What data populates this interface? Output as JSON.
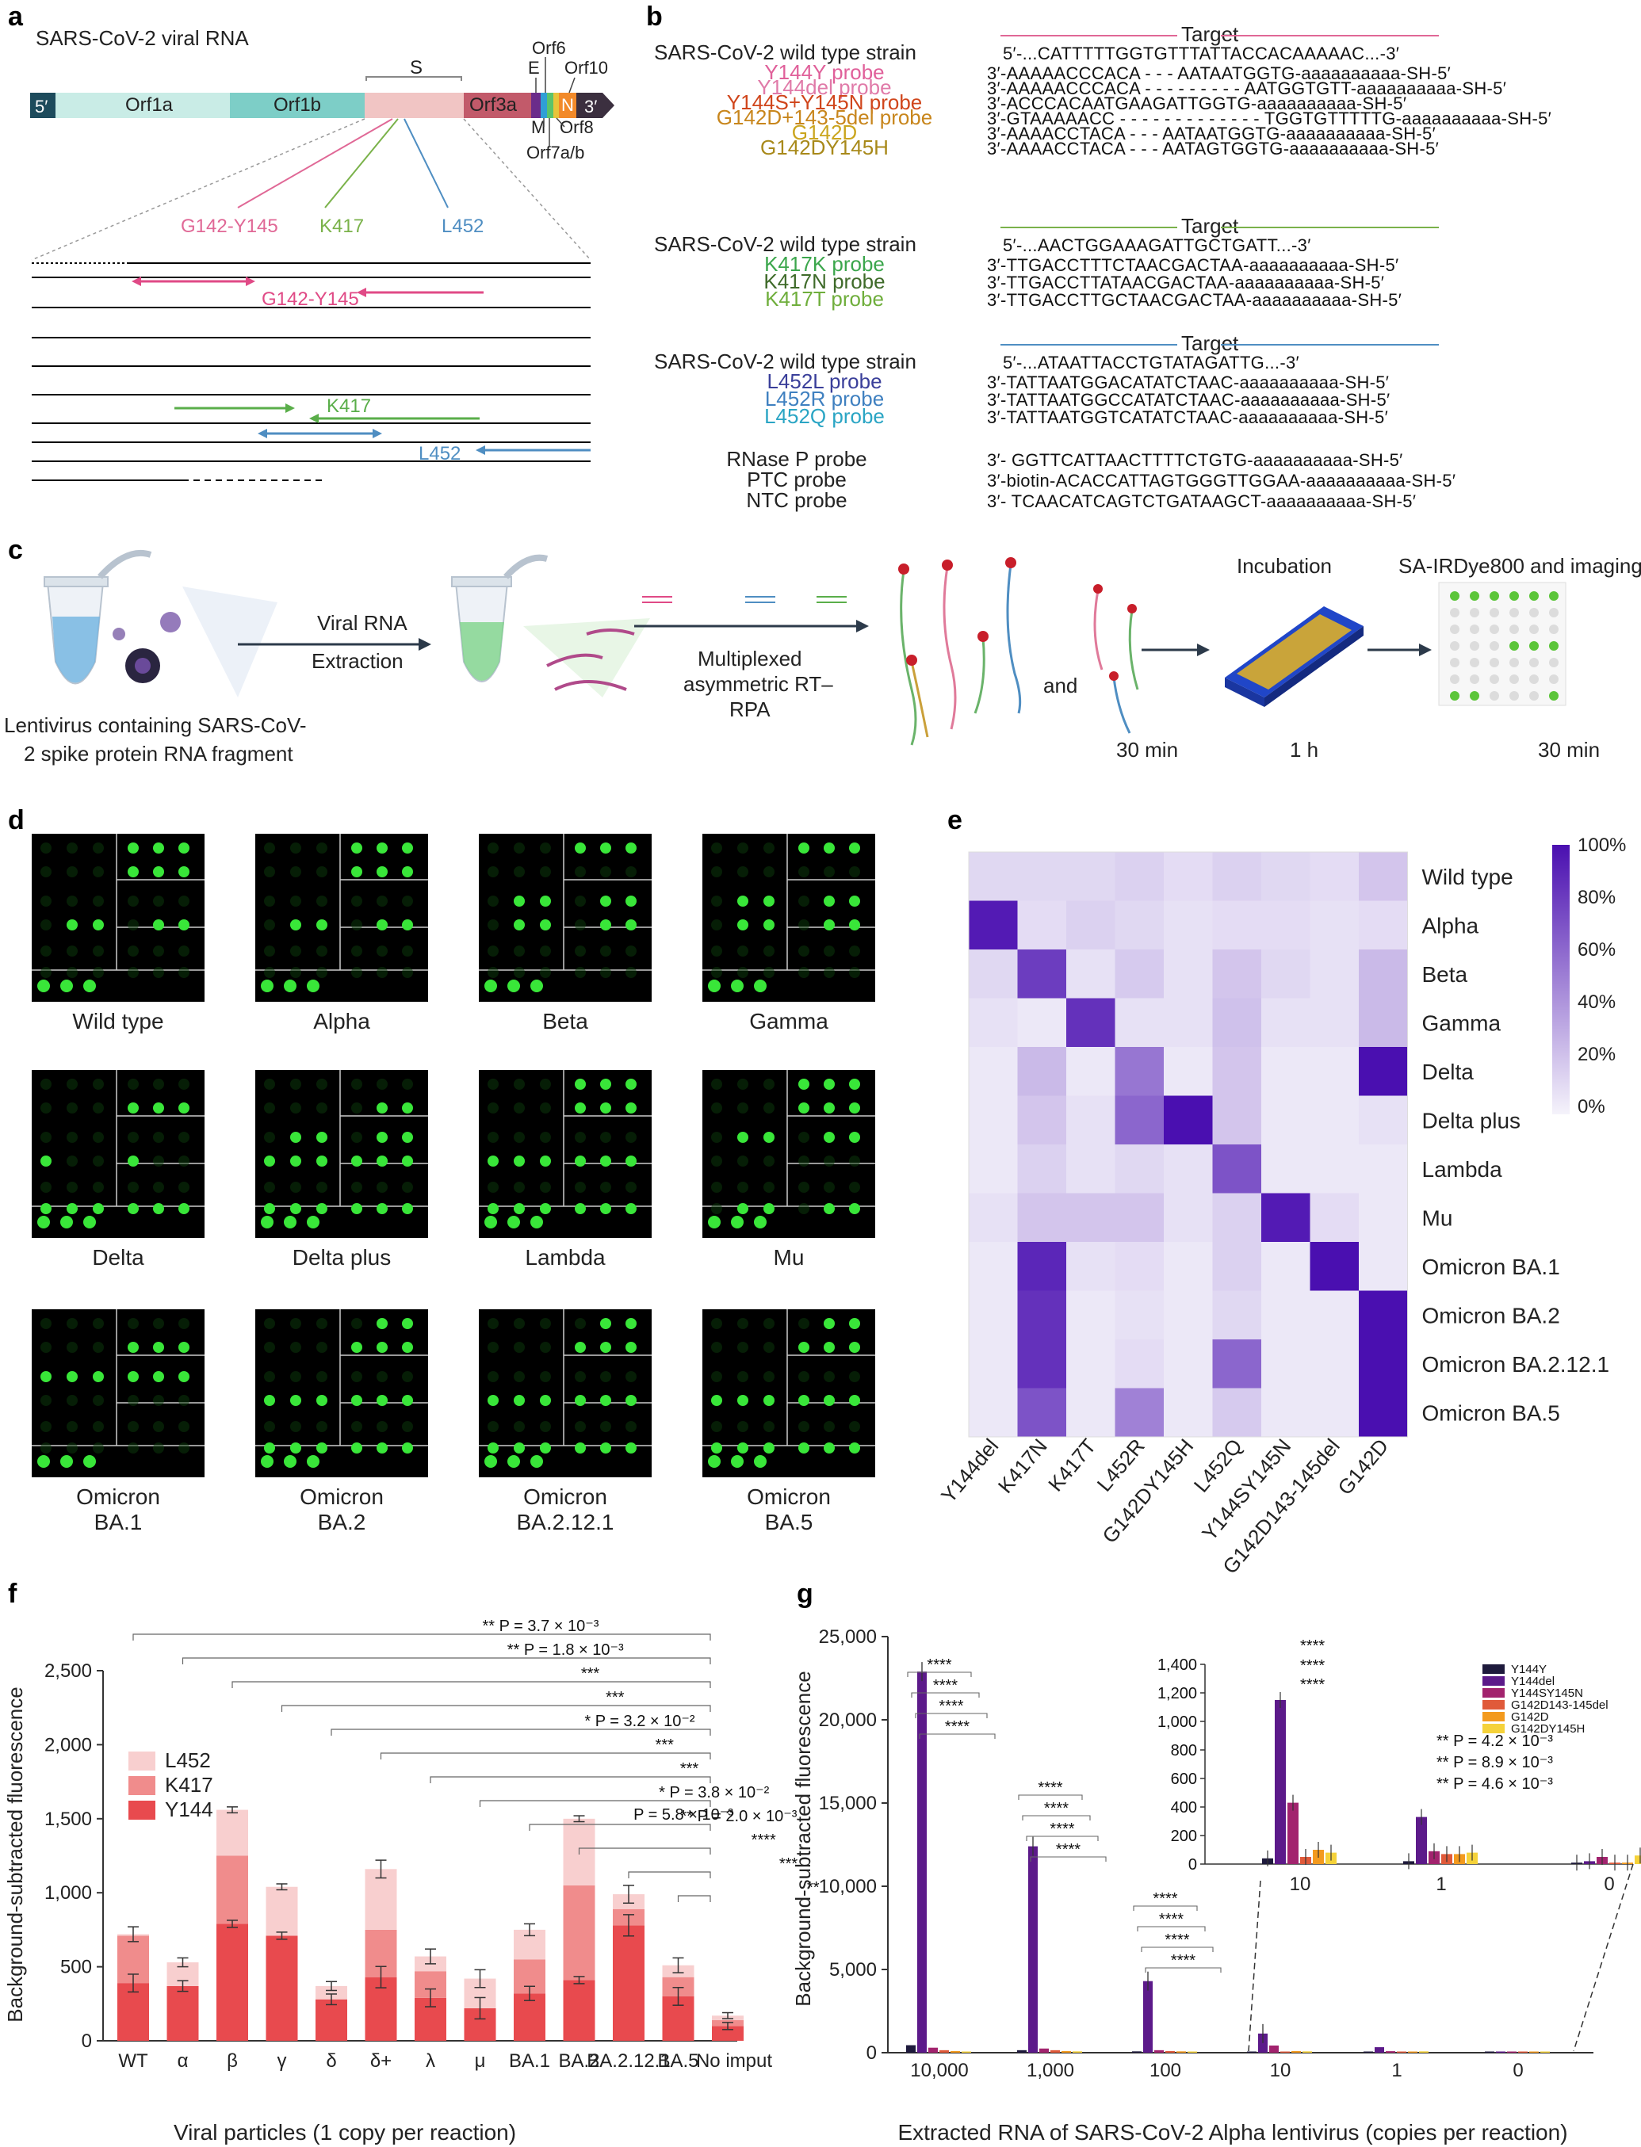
{
  "panel_labels": [
    "a",
    "b",
    "c",
    "d",
    "e",
    "f",
    "g"
  ],
  "a": {
    "title": "SARS-CoV-2 viral RNA",
    "five_prime": "5′",
    "three_prime": "3′",
    "genes": [
      "Orf1a",
      "Orf1b",
      "S",
      "Orf3a",
      "E",
      "M",
      "Orf6",
      "Orf7a/b",
      "Orf8",
      "N",
      "Orf10"
    ],
    "sites": [
      "G142-Y145",
      "K417",
      "L452"
    ],
    "amplicons": [
      "G142-Y145",
      "K417",
      "L452"
    ]
  },
  "b": {
    "groups": [
      {
        "wt_label": "SARS-CoV-2 wild type strain",
        "target_label": "Target",
        "wt_seq": "5′-...CATTTTTGGTGTTTATTACCACAAAAAC...-3′",
        "probes": [
          {
            "name": "Y144Y probe",
            "color": "#e0609a",
            "seq": "3′-AAAAACCCACA - - - AATAATGGTG-aaaaaaaaaa-SH-5′"
          },
          {
            "name": "Y144del probe",
            "color": "#e07aa8",
            "seq": "3′-AAAAACCCACA - - - - - - - - - AATGGTGTT-aaaaaaaaaa-SH-5′"
          },
          {
            "name": "Y144S+Y145N probe",
            "color": "#d0451b",
            "seq": "3′-ACCCACAATGAAGATTGGTG-aaaaaaaaaa-SH-5′"
          },
          {
            "name": "G142D+143-5del probe",
            "color": "#c8861c",
            "seq": "3′-GTAAAAACC - - - - - - - - - - - - - TGGTGTTTTTG-aaaaaaaaaa-SH-5′"
          },
          {
            "name": "G142D",
            "color": "#caa51e",
            "seq": "3′-AAAACCTACA - - - AATAATGGTG-aaaaaaaaaa-SH-5′"
          },
          {
            "name": "G142DY145H",
            "color": "#a8891a",
            "seq": "3′-AAAACCTACA - - - AATAGTGGTG-aaaaaaaaaa-SH-5′"
          }
        ]
      },
      {
        "wt_label": "SARS-CoV-2 wild type strain",
        "target_label": "Target",
        "wt_seq": "5′-...AACTGGAAAGATTGCTGATT...-3′",
        "probes": [
          {
            "name": "K417K probe",
            "color": "#3ba64c",
            "seq": "3′-TTGACCTTTCTAACGACTAA-aaaaaaaaaa-SH-5′"
          },
          {
            "name": "K417N probe",
            "color": "#3f6b2a",
            "seq": "3′-TTGACCTTATAACGACTAA-aaaaaaaaaa-SH-5′"
          },
          {
            "name": "K417T probe",
            "color": "#6fae3c",
            "seq": "3′-TTGACCTTGCTAACGACTAA-aaaaaaaaaa-SH-5′"
          }
        ]
      },
      {
        "wt_label": "SARS-CoV-2 wild type strain",
        "target_label": "Target",
        "wt_seq": "5′-...ATAATTACCTGTATAGATTG...-3′",
        "probes": [
          {
            "name": "L452L probe",
            "color": "#3a3f9a",
            "seq": "3′-TATTAATGGACATATCTAAC-aaaaaaaaaa-SH-5′"
          },
          {
            "name": "L452R probe",
            "color": "#3f80c0",
            "seq": "3′-TATTAATGGCCATATCTAAC-aaaaaaaaaa-SH-5′"
          },
          {
            "name": "L452Q probe",
            "color": "#2aa5c4",
            "seq": "3′-TATTAATGGTCATATCTAAC-aaaaaaaaaa-SH-5′"
          }
        ]
      }
    ],
    "controls": [
      {
        "name": "RNase P probe",
        "seq": "3′- GGTTCATTAACTTTTCTGTG-aaaaaaaaaa-SH-5′"
      },
      {
        "name": "PTC probe",
        "seq": "3′-biotin-ACACCATTAGTGGGTTGGAA-aaaaaaaaaa-SH-5′"
      },
      {
        "name": "NTC probe",
        "seq": "3′- TCAACATCAGTCTGATAAGCT-aaaaaaaaaa-SH-5′"
      }
    ]
  },
  "c": {
    "lentivirus_label": "Lentivirus containing SARS-CoV-2 spike protein RNA fragment",
    "lentivirus_line1": "Lentivirus containing SARS-CoV-",
    "lentivirus_line2": "2 spike protein RNA fragment",
    "step1_line1": "Viral RNA",
    "step1_line2": "Extraction",
    "step2_line1": "Multiplexed",
    "step2_line2": "asymmetric RT–",
    "step2_line3": "RPA",
    "and": "and",
    "incubation": "Incubation",
    "imaging": "SA-IRDye800 and imaging",
    "time1": "30 min",
    "time2": "1 h",
    "time3": "30 min"
  },
  "d": {
    "variants": [
      "Wild type",
      "Alpha",
      "Beta",
      "Gamma",
      "Delta",
      "Delta plus",
      "Lambda",
      "Mu",
      "Omicron BA.1",
      "Omicron BA.2",
      "Omicron BA.2.12.1",
      "Omicron BA.5"
    ],
    "labels_line1": [
      "Wild type",
      "Alpha",
      "Beta",
      "Gamma",
      "Delta",
      "Delta plus",
      "Lambda",
      "Mu",
      "Omicron",
      "Omicron",
      "Omicron",
      "Omicron"
    ],
    "labels_line2": [
      "",
      "",
      "",
      "",
      "",
      "",
      "",
      "",
      "BA.1",
      "BA.2",
      "BA.2.12.1",
      "BA.5"
    ]
  },
  "e": {
    "chart_data": {
      "type": "heatmap",
      "rows": [
        "Wild type",
        "Alpha",
        "Beta",
        "Gamma",
        "Delta",
        "Delta plus",
        "Lambda",
        "Mu",
        "Omicron BA.1",
        "Omicron BA.2",
        "Omicron BA.2.12.1",
        "Omicron BA.5"
      ],
      "cols": [
        "Y144del",
        "K417N",
        "K417T",
        "L452R",
        "G142DY145H",
        "L452Q",
        "Y144SY145N",
        "G142D143-145del",
        "G142D"
      ],
      "values": [
        [
          0.12,
          0.12,
          0.12,
          0.15,
          0.1,
          0.15,
          0.12,
          0.1,
          0.2
        ],
        [
          0.95,
          0.1,
          0.15,
          0.12,
          0.08,
          0.1,
          0.1,
          0.08,
          0.1
        ],
        [
          0.12,
          0.8,
          0.08,
          0.18,
          0.08,
          0.2,
          0.12,
          0.08,
          0.25
        ],
        [
          0.08,
          0.05,
          0.85,
          0.08,
          0.08,
          0.22,
          0.08,
          0.08,
          0.25
        ],
        [
          0.05,
          0.25,
          0.05,
          0.55,
          0.05,
          0.2,
          0.05,
          0.05,
          1.0
        ],
        [
          0.05,
          0.2,
          0.08,
          0.62,
          1.0,
          0.2,
          0.05,
          0.05,
          0.08
        ],
        [
          0.05,
          0.15,
          0.08,
          0.12,
          0.08,
          0.7,
          0.05,
          0.05,
          0.05
        ],
        [
          0.08,
          0.2,
          0.2,
          0.2,
          0.08,
          0.15,
          0.95,
          0.1,
          0.05
        ],
        [
          0.05,
          0.9,
          0.08,
          0.1,
          0.05,
          0.15,
          0.05,
          1.0,
          0.05
        ],
        [
          0.05,
          0.85,
          0.05,
          0.08,
          0.05,
          0.12,
          0.05,
          0.05,
          1.0
        ],
        [
          0.05,
          0.85,
          0.05,
          0.1,
          0.05,
          0.62,
          0.05,
          0.05,
          1.0
        ],
        [
          0.05,
          0.7,
          0.05,
          0.5,
          0.05,
          0.18,
          0.05,
          0.05,
          1.0
        ]
      ],
      "colorbar_ticks": [
        "100%",
        "80%",
        "60%",
        "40%",
        "20%",
        "0%"
      ],
      "color_min": "#f5f3fb",
      "color_max": "#4a0fb0"
    }
  },
  "f": {
    "chart_data": {
      "type": "bar",
      "stacked": true,
      "ylabel": "Background-subtracted fluorescence",
      "xlabel": "Viral particles (1 copy per reaction)",
      "ylim": [
        0,
        2500
      ],
      "yticks": [
        "0",
        "500",
        "1,000",
        "1,500",
        "2,000",
        "2,500"
      ],
      "categories": [
        "WT",
        "α",
        "β",
        "γ",
        "δ",
        "δ+",
        "λ",
        "μ",
        "BA.1",
        "BA.2",
        "BA.2.12.1",
        "BA.5",
        "No imput"
      ],
      "series": [
        {
          "name": "Y144",
          "color": "#e84a4e",
          "values": [
            390,
            370,
            790,
            710,
            280,
            430,
            290,
            220,
            320,
            410,
            780,
            300,
            100
          ]
        },
        {
          "name": "K417",
          "color": "#f08c8c",
          "values": [
            320,
            0,
            460,
            0,
            0,
            320,
            180,
            0,
            230,
            640,
            110,
            130,
            40
          ]
        },
        {
          "name": "L452",
          "color": "#f8cfcf",
          "values": [
            10,
            160,
            310,
            330,
            90,
            410,
            100,
            200,
            200,
            450,
            100,
            80,
            30
          ]
        }
      ],
      "errors": [
        50,
        30,
        20,
        20,
        30,
        60,
        50,
        60,
        40,
        20,
        60,
        50,
        20
      ],
      "comparisons": [
        {
          "label": "**  P = 3.7 × 10⁻³"
        },
        {
          "label": "**  P = 1.8 × 10⁻³"
        },
        {
          "label": "***"
        },
        {
          "label": "***"
        },
        {
          "label": "*  P = 3.2 × 10⁻²"
        },
        {
          "label": "***"
        },
        {
          "label": "***"
        },
        {
          "label": "*  P = 3.8 × 10⁻²"
        },
        {
          "label": "**  P = 2.0 × 10⁻³"
        },
        {
          "label": "****"
        },
        {
          "label": "***"
        },
        {
          "label": "**"
        },
        {
          "label": "P = 5.8 × 10⁻³"
        }
      ]
    }
  },
  "g": {
    "chart_data": {
      "type": "bar",
      "ylabel": "Background-subtracted fluorescence",
      "xlabel": "Extracted RNA of SARS-CoV-2 Alpha lentivirus (copies per reaction)",
      "ylim": [
        0,
        25000
      ],
      "yticks": [
        "0",
        "5,000",
        "10,000",
        "15,000",
        "20,000",
        "25,000"
      ],
      "categories": [
        "10,000",
        "1,000",
        "100",
        "10",
        "1",
        "0"
      ],
      "series": [
        {
          "name": "Y144Y",
          "color": "#1e1a3c",
          "values": [
            450,
            150,
            80,
            40,
            20,
            10
          ]
        },
        {
          "name": "Y144del",
          "color": "#5c1a8a",
          "values": [
            22900,
            12400,
            4300,
            1150,
            330,
            20
          ]
        },
        {
          "name": "Y144SY145N",
          "color": "#a2236e",
          "values": [
            300,
            250,
            150,
            430,
            90,
            50
          ]
        },
        {
          "name": "G142D143-145del",
          "color": "#e05a3a",
          "values": [
            150,
            150,
            100,
            50,
            70,
            10
          ]
        },
        {
          "name": "G142D",
          "color": "#f39a1e",
          "values": [
            100,
            100,
            80,
            100,
            70,
            10
          ]
        },
        {
          "name": "G142DY145H",
          "color": "#f5d23a",
          "values": [
            60,
            80,
            50,
            80,
            80,
            60
          ]
        }
      ],
      "inset": {
        "ylim": [
          0,
          1400
        ],
        "yticks": [
          "0",
          "200",
          "400",
          "600",
          "800",
          "1,000",
          "1,200",
          "1,400"
        ],
        "categories": [
          "10",
          "1",
          "0"
        ],
        "annotations": [
          "**  P = 4.2 × 10⁻³",
          "**  P = 8.9 × 10⁻³",
          "**  P = 4.6 × 10⁻³"
        ]
      }
    }
  }
}
